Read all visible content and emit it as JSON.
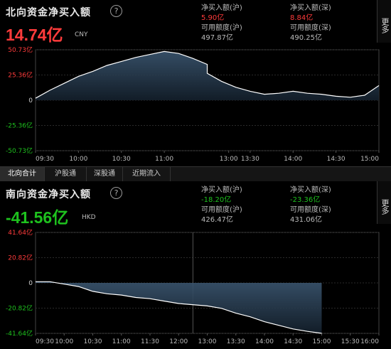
{
  "north": {
    "title": "北向资金净买入额",
    "help_icon": "?",
    "total": "14.74亿",
    "currency": "CNY",
    "stats": {
      "net_sh_label": "净买入额(沪)",
      "net_sh_value": "5.90亿",
      "net_sz_label": "净买入额(深)",
      "net_sz_value": "8.84亿",
      "avail_sh_label": "可用额度(沪)",
      "avail_sh_value": "497.87亿",
      "avail_sz_label": "可用额度(深)",
      "avail_sz_value": "490.25亿"
    },
    "more": "更多"
  },
  "tabs": [
    "北向合计",
    "沪股通",
    "深股通",
    "近期流入"
  ],
  "south": {
    "title": "南向资金净买入额",
    "help_icon": "?",
    "total": "-41.56亿",
    "currency": "HKD",
    "stats": {
      "net_sh_label": "净买入额(沪)",
      "net_sh_value": "-18.20亿",
      "net_sz_label": "净买入额(深)",
      "net_sz_value": "-23.36亿",
      "avail_sh_label": "可用额度(沪)",
      "avail_sh_value": "426.47亿",
      "avail_sz_label": "可用额度(深)",
      "avail_sz_value": "431.06亿"
    },
    "more": "更多"
  },
  "colors": {
    "up": "#ff3b3b",
    "down": "#1ec11e",
    "line": "#ffffff",
    "fill_top": "#3b5670",
    "fill_bottom": "#14202c"
  },
  "chart_data": [
    {
      "type": "area",
      "name_hint": "north",
      "ylim": [
        -50.73,
        50.73
      ],
      "y_ticks": [
        "50.73亿",
        "25.36亿",
        "0",
        "-25.36亿",
        "-50.73亿"
      ],
      "y_tick_values": [
        50.73,
        25.36,
        0,
        -25.36,
        -50.73
      ],
      "x_ticks": [
        "09:30",
        "10:00",
        "10:30",
        "11:00",
        "13:00",
        "13:30",
        "14:00",
        "14:30",
        "15:00"
      ],
      "x": [
        "09:30",
        "09:40",
        "09:50",
        "10:00",
        "10:10",
        "10:20",
        "10:30",
        "10:40",
        "10:50",
        "11:00",
        "11:10",
        "11:20",
        "11:30",
        "13:00",
        "13:10",
        "13:20",
        "13:30",
        "13:40",
        "13:50",
        "14:00",
        "14:10",
        "14:20",
        "14:30",
        "14:40",
        "14:50",
        "15:00"
      ],
      "values": [
        2,
        10,
        17,
        24,
        29,
        35,
        39,
        43,
        46,
        49,
        47,
        42,
        36,
        27,
        19,
        13,
        9,
        6,
        7,
        9,
        7,
        6,
        4,
        3,
        5,
        14.74
      ]
    },
    {
      "type": "area",
      "name_hint": "south",
      "ylim": [
        -41.64,
        41.64
      ],
      "y_ticks": [
        "41.64亿",
        "20.82亿",
        "0",
        "-20.82亿",
        "-41.64亿"
      ],
      "y_tick_values": [
        41.64,
        20.82,
        0,
        -20.82,
        -41.64
      ],
      "x_ticks": [
        "09:30",
        "10:00",
        "10:30",
        "11:00",
        "11:30",
        "12:00",
        "13:00",
        "13:30",
        "14:00",
        "14:30",
        "15:00",
        "15:30",
        "16:00"
      ],
      "x": [
        "09:30",
        "09:45",
        "10:00",
        "10:15",
        "10:30",
        "10:45",
        "11:00",
        "11:15",
        "11:30",
        "11:45",
        "12:00",
        "13:00",
        "13:15",
        "13:30",
        "13:45",
        "14:00",
        "14:15",
        "14:30",
        "14:45",
        "15:00"
      ],
      "values": [
        1,
        1,
        -1,
        -3,
        -7,
        -9,
        -10,
        -12,
        -13,
        -15,
        -17,
        -19,
        -21,
        -25,
        -28,
        -32,
        -35,
        -38,
        -40,
        -41.56
      ]
    }
  ]
}
